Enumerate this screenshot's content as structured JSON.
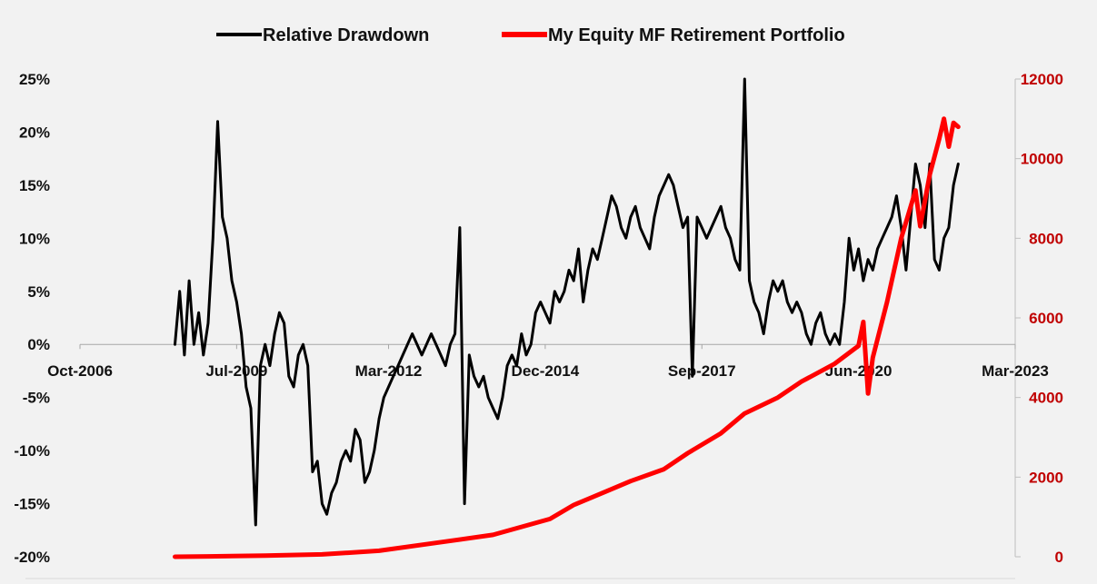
{
  "chart_data": {
    "type": "line",
    "title": "",
    "legend": {
      "position": "top"
    },
    "x_axis": {
      "ticks": [
        "Oct-2006",
        "Jul-2009",
        "Mar-2012",
        "Dec-2014",
        "Sep-2017",
        "Jun-2020",
        "Mar-2023"
      ],
      "min": "Oct-2006",
      "max": "Mar-2023"
    },
    "y_left": {
      "ticks": [
        "25%",
        "20%",
        "15%",
        "10%",
        "5%",
        "0%",
        "-5%",
        "-10%",
        "-15%",
        "-20%"
      ],
      "min": -20,
      "max": 25,
      "unit": "%"
    },
    "y_right": {
      "ticks": [
        "12000",
        "10000",
        "8000",
        "6000",
        "4000",
        "2000",
        "0"
      ],
      "min": 0,
      "max": 12000,
      "color": "#c00000"
    },
    "grid": false,
    "series": [
      {
        "name": "Relative Drawdown",
        "axis": "left",
        "color": "#000000",
        "points": [
          [
            "Jun-2008",
            0
          ],
          [
            "Jul-2008",
            5
          ],
          [
            "Aug-2008",
            -1
          ],
          [
            "Sep-2008",
            6
          ],
          [
            "Oct-2008",
            0
          ],
          [
            "Nov-2008",
            3
          ],
          [
            "Dec-2008",
            -1
          ],
          [
            "Jan-2009",
            2
          ],
          [
            "Feb-2009",
            10
          ],
          [
            "Mar-2009",
            21
          ],
          [
            "Apr-2009",
            12
          ],
          [
            "May-2009",
            10
          ],
          [
            "Jun-2009",
            6
          ],
          [
            "Jul-2009",
            4
          ],
          [
            "Aug-2009",
            1
          ],
          [
            "Sep-2009",
            -4
          ],
          [
            "Oct-2009",
            -6
          ],
          [
            "Nov-2009",
            -17
          ],
          [
            "Dec-2009",
            -2
          ],
          [
            "Jan-2010",
            0
          ],
          [
            "Feb-2010",
            -2
          ],
          [
            "Mar-2010",
            1
          ],
          [
            "Apr-2010",
            3
          ],
          [
            "May-2010",
            2
          ],
          [
            "Jun-2010",
            -3
          ],
          [
            "Jul-2010",
            -4
          ],
          [
            "Aug-2010",
            -1
          ],
          [
            "Sep-2010",
            0
          ],
          [
            "Oct-2010",
            -2
          ],
          [
            "Nov-2010",
            -12
          ],
          [
            "Dec-2010",
            -11
          ],
          [
            "Jan-2011",
            -15
          ],
          [
            "Feb-2011",
            -16
          ],
          [
            "Mar-2011",
            -14
          ],
          [
            "Apr-2011",
            -13
          ],
          [
            "May-2011",
            -11
          ],
          [
            "Jun-2011",
            -10
          ],
          [
            "Jul-2011",
            -11
          ],
          [
            "Aug-2011",
            -8
          ],
          [
            "Sep-2011",
            -9
          ],
          [
            "Oct-2011",
            -13
          ],
          [
            "Nov-2011",
            -12
          ],
          [
            "Dec-2011",
            -10
          ],
          [
            "Jan-2012",
            -7
          ],
          [
            "Feb-2012",
            -5
          ],
          [
            "Mar-2012",
            -4
          ],
          [
            "Apr-2012",
            -3
          ],
          [
            "May-2012",
            -2
          ],
          [
            "Jun-2012",
            -1
          ],
          [
            "Jul-2012",
            0
          ],
          [
            "Aug-2012",
            1
          ],
          [
            "Sep-2012",
            0
          ],
          [
            "Oct-2012",
            -1
          ],
          [
            "Nov-2012",
            0
          ],
          [
            "Dec-2012",
            1
          ],
          [
            "Jan-2013",
            0
          ],
          [
            "Feb-2013",
            -1
          ],
          [
            "Mar-2013",
            -2
          ],
          [
            "Apr-2013",
            0
          ],
          [
            "May-2013",
            1
          ],
          [
            "Jun-2013",
            11
          ],
          [
            "Jul-2013",
            -15
          ],
          [
            "Aug-2013",
            -1
          ],
          [
            "Sep-2013",
            -3
          ],
          [
            "Oct-2013",
            -4
          ],
          [
            "Nov-2013",
            -3
          ],
          [
            "Dec-2013",
            -5
          ],
          [
            "Jan-2014",
            -6
          ],
          [
            "Feb-2014",
            -7
          ],
          [
            "Mar-2014",
            -5
          ],
          [
            "Apr-2014",
            -2
          ],
          [
            "May-2014",
            -1
          ],
          [
            "Jun-2014",
            -2
          ],
          [
            "Jul-2014",
            1
          ],
          [
            "Aug-2014",
            -1
          ],
          [
            "Sep-2014",
            0
          ],
          [
            "Oct-2014",
            3
          ],
          [
            "Nov-2014",
            4
          ],
          [
            "Dec-2014",
            3
          ],
          [
            "Jan-2015",
            2
          ],
          [
            "Feb-2015",
            5
          ],
          [
            "Mar-2015",
            4
          ],
          [
            "Apr-2015",
            5
          ],
          [
            "May-2015",
            7
          ],
          [
            "Jun-2015",
            6
          ],
          [
            "Jul-2015",
            9
          ],
          [
            "Aug-2015",
            4
          ],
          [
            "Sep-2015",
            7
          ],
          [
            "Oct-2015",
            9
          ],
          [
            "Nov-2015",
            8
          ],
          [
            "Dec-2015",
            10
          ],
          [
            "Jan-2016",
            12
          ],
          [
            "Feb-2016",
            14
          ],
          [
            "Mar-2016",
            13
          ],
          [
            "Apr-2016",
            11
          ],
          [
            "May-2016",
            10
          ],
          [
            "Jun-2016",
            12
          ],
          [
            "Jul-2016",
            13
          ],
          [
            "Aug-2016",
            11
          ],
          [
            "Sep-2016",
            10
          ],
          [
            "Oct-2016",
            9
          ],
          [
            "Nov-2016",
            12
          ],
          [
            "Dec-2016",
            14
          ],
          [
            "Jan-2017",
            15
          ],
          [
            "Feb-2017",
            16
          ],
          [
            "Mar-2017",
            15
          ],
          [
            "Apr-2017",
            13
          ],
          [
            "May-2017",
            11
          ],
          [
            "Jun-2017",
            12
          ],
          [
            "Jul-2017",
            -3
          ],
          [
            "Aug-2017",
            12
          ],
          [
            "Sep-2017",
            11
          ],
          [
            "Oct-2017",
            10
          ],
          [
            "Nov-2017",
            11
          ],
          [
            "Dec-2017",
            12
          ],
          [
            "Jan-2018",
            13
          ],
          [
            "Feb-2018",
            11
          ],
          [
            "Mar-2018",
            10
          ],
          [
            "Apr-2018",
            8
          ],
          [
            "May-2018",
            7
          ],
          [
            "Jun-2018",
            25
          ],
          [
            "Jul-2018",
            6
          ],
          [
            "Aug-2018",
            4
          ],
          [
            "Sep-2018",
            3
          ],
          [
            "Oct-2018",
            1
          ],
          [
            "Nov-2018",
            4
          ],
          [
            "Dec-2018",
            6
          ],
          [
            "Jan-2019",
            5
          ],
          [
            "Feb-2019",
            6
          ],
          [
            "Mar-2019",
            4
          ],
          [
            "Apr-2019",
            3
          ],
          [
            "May-2019",
            4
          ],
          [
            "Jun-2019",
            3
          ],
          [
            "Jul-2019",
            1
          ],
          [
            "Aug-2019",
            0
          ],
          [
            "Sep-2019",
            2
          ],
          [
            "Oct-2019",
            3
          ],
          [
            "Nov-2019",
            1
          ],
          [
            "Dec-2019",
            0
          ],
          [
            "Jan-2020",
            1
          ],
          [
            "Feb-2020",
            0
          ],
          [
            "Mar-2020",
            4
          ],
          [
            "Apr-2020",
            10
          ],
          [
            "May-2020",
            7
          ],
          [
            "Jun-2020",
            9
          ],
          [
            "Jul-2020",
            6
          ],
          [
            "Aug-2020",
            8
          ],
          [
            "Sep-2020",
            7
          ],
          [
            "Oct-2020",
            9
          ],
          [
            "Nov-2020",
            10
          ],
          [
            "Dec-2020",
            11
          ],
          [
            "Jan-2021",
            12
          ],
          [
            "Feb-2021",
            14
          ],
          [
            "Mar-2021",
            11
          ],
          [
            "Apr-2021",
            7
          ],
          [
            "May-2021",
            12
          ],
          [
            "Jun-2021",
            17
          ],
          [
            "Jul-2021",
            15
          ],
          [
            "Aug-2021",
            11
          ],
          [
            "Sep-2021",
            17
          ],
          [
            "Oct-2021",
            8
          ],
          [
            "Nov-2021",
            7
          ],
          [
            "Dec-2021",
            10
          ],
          [
            "Jan-2022",
            11
          ],
          [
            "Feb-2022",
            15
          ],
          [
            "Mar-2022",
            17
          ]
        ]
      },
      {
        "name": "My Equity MF Retirement Portfolio",
        "axis": "right",
        "color": "#ff0000",
        "points": [
          [
            "Jun-2008",
            0
          ],
          [
            "Jan-2009",
            10
          ],
          [
            "Jan-2010",
            30
          ],
          [
            "Jan-2011",
            60
          ],
          [
            "Jan-2012",
            150
          ],
          [
            "Jan-2013",
            350
          ],
          [
            "Jan-2014",
            550
          ],
          [
            "Jan-2015",
            950
          ],
          [
            "Jun-2015",
            1300
          ],
          [
            "Jan-2016",
            1650
          ],
          [
            "Jun-2016",
            1900
          ],
          [
            "Jan-2017",
            2200
          ],
          [
            "Jun-2017",
            2600
          ],
          [
            "Jan-2018",
            3100
          ],
          [
            "Jun-2018",
            3600
          ],
          [
            "Jan-2019",
            4000
          ],
          [
            "Jun-2019",
            4400
          ],
          [
            "Jan-2020",
            4850
          ],
          [
            "Jun-2020",
            5300
          ],
          [
            "Jul-2020",
            5900
          ],
          [
            "Aug-2020",
            4100
          ],
          [
            "Sep-2020",
            5000
          ],
          [
            "Dec-2020",
            6400
          ],
          [
            "Mar-2021",
            8000
          ],
          [
            "Jun-2021",
            9200
          ],
          [
            "Jul-2021",
            8300
          ],
          [
            "Sep-2021",
            9600
          ],
          [
            "Nov-2021",
            10500
          ],
          [
            "Dec-2021",
            11000
          ],
          [
            "Jan-2022",
            10300
          ],
          [
            "Feb-2022",
            10900
          ],
          [
            "Mar-2022",
            10800
          ]
        ]
      }
    ]
  }
}
